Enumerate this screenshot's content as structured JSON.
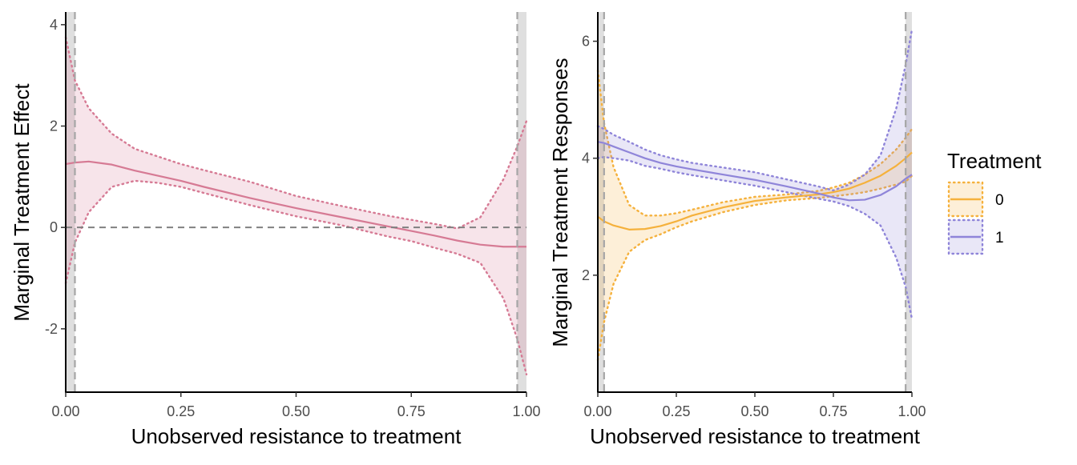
{
  "chart_data": [
    {
      "type": "line",
      "xlabel": "Unobserved resistance to treatment",
      "ylabel": "Marginal Treatment Effect",
      "xlim": [
        0,
        1
      ],
      "ylim": [
        -3.25,
        4.25
      ],
      "x_ticks": [
        "0.00",
        "0.25",
        "0.50",
        "0.75",
        "1.00"
      ],
      "y_ticks": [
        "-2",
        "0",
        "2",
        "4"
      ],
      "grid": false,
      "reference_line_y": 0,
      "trim_bounds": [
        0.02,
        0.98
      ],
      "series": [
        {
          "color": "#d67a94",
          "x": [
            0.0,
            0.02,
            0.05,
            0.1,
            0.15,
            0.2,
            0.25,
            0.3,
            0.4,
            0.5,
            0.6,
            0.7,
            0.75,
            0.8,
            0.85,
            0.9,
            0.95,
            0.98,
            1.0
          ],
          "y": [
            1.25,
            1.28,
            1.3,
            1.24,
            1.12,
            1.02,
            0.92,
            0.8,
            0.58,
            0.38,
            0.2,
            0.02,
            -0.07,
            -0.16,
            -0.26,
            -0.34,
            -0.38,
            -0.38,
            -0.38
          ],
          "lower": [
            -1.1,
            -0.3,
            0.3,
            0.8,
            0.92,
            0.88,
            0.8,
            0.68,
            0.44,
            0.22,
            0.04,
            -0.18,
            -0.27,
            -0.4,
            -0.52,
            -0.7,
            -1.4,
            -2.2,
            -2.9
          ],
          "upper": [
            3.75,
            2.9,
            2.35,
            1.85,
            1.55,
            1.4,
            1.25,
            1.13,
            0.9,
            0.62,
            0.42,
            0.23,
            0.15,
            0.07,
            -0.02,
            0.2,
            0.95,
            1.6,
            2.1
          ]
        }
      ]
    },
    {
      "type": "line",
      "xlabel": "Unobserved resistance to treatment",
      "ylabel": "Marginal Treatment Responses",
      "xlim": [
        0,
        1
      ],
      "ylim": [
        0.0,
        6.5
      ],
      "x_ticks": [
        "0.00",
        "0.25",
        "0.50",
        "0.75",
        "1.00"
      ],
      "y_ticks": [
        "2",
        "4",
        "6"
      ],
      "grid": false,
      "trim_bounds": [
        0.02,
        0.98
      ],
      "legend": {
        "title": "Treatment",
        "position": "right"
      },
      "series": [
        {
          "name": "0",
          "color": "#f5b13c",
          "x": [
            0.0,
            0.02,
            0.05,
            0.1,
            0.15,
            0.2,
            0.25,
            0.3,
            0.4,
            0.5,
            0.6,
            0.7,
            0.75,
            0.8,
            0.85,
            0.9,
            0.95,
            0.98,
            1.0
          ],
          "y": [
            3.0,
            2.92,
            2.85,
            2.78,
            2.79,
            2.84,
            2.92,
            3.02,
            3.16,
            3.27,
            3.33,
            3.38,
            3.42,
            3.48,
            3.58,
            3.7,
            3.87,
            4.0,
            4.1
          ],
          "lower": [
            0.55,
            1.2,
            1.85,
            2.4,
            2.6,
            2.7,
            2.82,
            2.92,
            3.08,
            3.2,
            3.28,
            3.32,
            3.35,
            3.38,
            3.42,
            3.48,
            3.55,
            3.6,
            3.7
          ],
          "upper": [
            5.5,
            4.6,
            3.85,
            3.2,
            3.02,
            3.02,
            3.06,
            3.12,
            3.25,
            3.34,
            3.38,
            3.44,
            3.5,
            3.58,
            3.72,
            3.9,
            4.15,
            4.35,
            4.5
          ]
        },
        {
          "name": "1",
          "color": "#8f85d9",
          "x": [
            0.0,
            0.02,
            0.05,
            0.1,
            0.15,
            0.2,
            0.25,
            0.3,
            0.4,
            0.5,
            0.6,
            0.7,
            0.75,
            0.8,
            0.85,
            0.9,
            0.95,
            0.98,
            1.0
          ],
          "y": [
            4.28,
            4.26,
            4.2,
            4.1,
            4.0,
            3.92,
            3.86,
            3.81,
            3.72,
            3.63,
            3.52,
            3.4,
            3.33,
            3.28,
            3.29,
            3.37,
            3.52,
            3.65,
            3.72
          ],
          "lower": [
            4.0,
            4.02,
            4.0,
            3.96,
            3.87,
            3.82,
            3.76,
            3.71,
            3.62,
            3.53,
            3.42,
            3.31,
            3.26,
            3.18,
            3.05,
            2.85,
            2.3,
            1.8,
            1.25
          ],
          "upper": [
            4.55,
            4.5,
            4.4,
            4.28,
            4.15,
            4.05,
            3.98,
            3.92,
            3.84,
            3.76,
            3.64,
            3.52,
            3.45,
            3.55,
            3.72,
            4.05,
            4.85,
            5.6,
            6.2
          ]
        }
      ]
    }
  ]
}
